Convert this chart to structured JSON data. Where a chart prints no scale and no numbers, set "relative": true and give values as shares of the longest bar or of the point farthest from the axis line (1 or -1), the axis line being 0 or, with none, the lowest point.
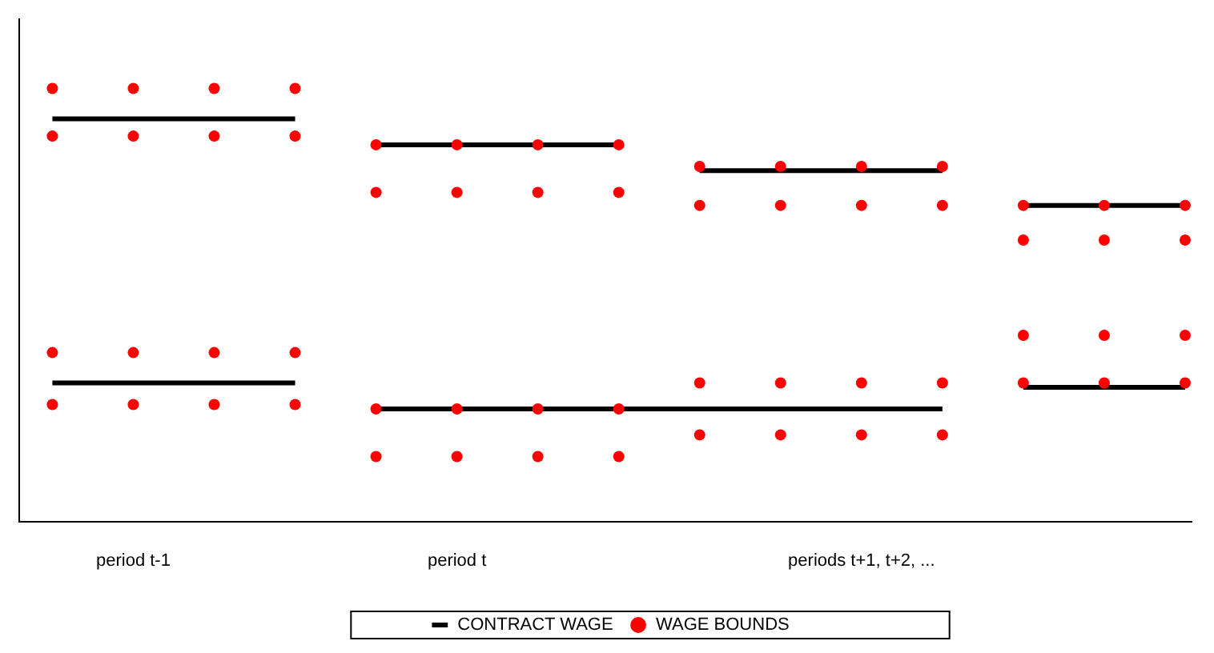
{
  "chart_data": {
    "type": "scatter",
    "relative": true,
    "grid": false,
    "legend": "bottom",
    "categories": [
      null,
      "period t-1",
      null,
      null,
      null,
      "period t",
      null,
      null,
      null,
      null,
      "periods t+1, t+2, ...",
      null,
      null,
      null,
      null
    ],
    "series": [
      {
        "type": "line",
        "name": "CONTRACT WAGE",
        "color": "#000000",
        "marker": "none",
        "line_style": "solid",
        "values": [
          0.93,
          0.93,
          0.93,
          0.93,
          null,
          null,
          null,
          null,
          null,
          null,
          null,
          null,
          null,
          null,
          null
        ]
      },
      {
        "type": "line",
        "color": "#000000",
        "marker": "none",
        "line_style": "solid",
        "values": [
          0.32,
          0.32,
          0.32,
          0.32,
          null,
          null,
          null,
          null,
          null,
          null,
          null,
          null,
          null,
          null,
          null
        ]
      },
      {
        "type": "line",
        "color": "#000000",
        "marker": "none",
        "line_style": "solid",
        "values": [
          null,
          null,
          null,
          null,
          0.87,
          0.87,
          0.87,
          0.87,
          null,
          null,
          null,
          null,
          null,
          null,
          null
        ]
      },
      {
        "type": "line",
        "color": "#000000",
        "marker": "none",
        "line_style": "solid",
        "values": [
          null,
          null,
          null,
          null,
          0.26,
          0.26,
          0.26,
          0.26,
          0.26,
          0.26,
          0.26,
          0.26,
          null,
          null,
          null
        ]
      },
      {
        "type": "line",
        "color": "#000000",
        "marker": "none",
        "line_style": "solid",
        "values": [
          null,
          null,
          null,
          null,
          null,
          null,
          null,
          null,
          0.81,
          0.81,
          0.81,
          0.81,
          null,
          null,
          null
        ]
      },
      {
        "type": "line",
        "color": "#000000",
        "marker": "none",
        "line_style": "solid",
        "values": [
          null,
          null,
          null,
          null,
          null,
          null,
          null,
          null,
          null,
          null,
          null,
          null,
          0.73,
          0.73,
          0.73
        ]
      },
      {
        "type": "line",
        "color": "#000000",
        "marker": "none",
        "line_style": "solid",
        "values": [
          null,
          null,
          null,
          null,
          null,
          null,
          null,
          null,
          null,
          null,
          null,
          null,
          0.31,
          0.31,
          0.31
        ]
      },
      {
        "name": "WAGE BOUNDS",
        "color": "#ff0000",
        "marker": "circle",
        "values": [
          1,
          1,
          1,
          1,
          0.87,
          0.87,
          0.87,
          0.87,
          0.82,
          0.82,
          0.82,
          0.82,
          0.73,
          0.73,
          0.73
        ]
      },
      {
        "color": "#ff0000",
        "marker": "circle",
        "values": [
          0.89,
          0.89,
          0.89,
          0.89,
          0.76,
          0.76,
          0.76,
          0.76,
          0.73,
          0.73,
          0.73,
          0.73,
          0.65,
          0.65,
          0.65
        ]
      },
      {
        "color": "#ff0000",
        "marker": "circle",
        "values": [
          0.39,
          0.39,
          0.39,
          0.39,
          0.26,
          0.26,
          0.26,
          0.26,
          0.32,
          0.32,
          0.32,
          0.32,
          0.43,
          0.43,
          0.43
        ]
      },
      {
        "color": "#ff0000",
        "marker": "circle",
        "values": [
          0.27,
          0.27,
          0.27,
          0.27,
          0.15,
          0.15,
          0.15,
          0.15,
          0.2,
          0.2,
          0.2,
          0.2,
          0.32,
          0.32,
          0.32
        ]
      }
    ]
  }
}
